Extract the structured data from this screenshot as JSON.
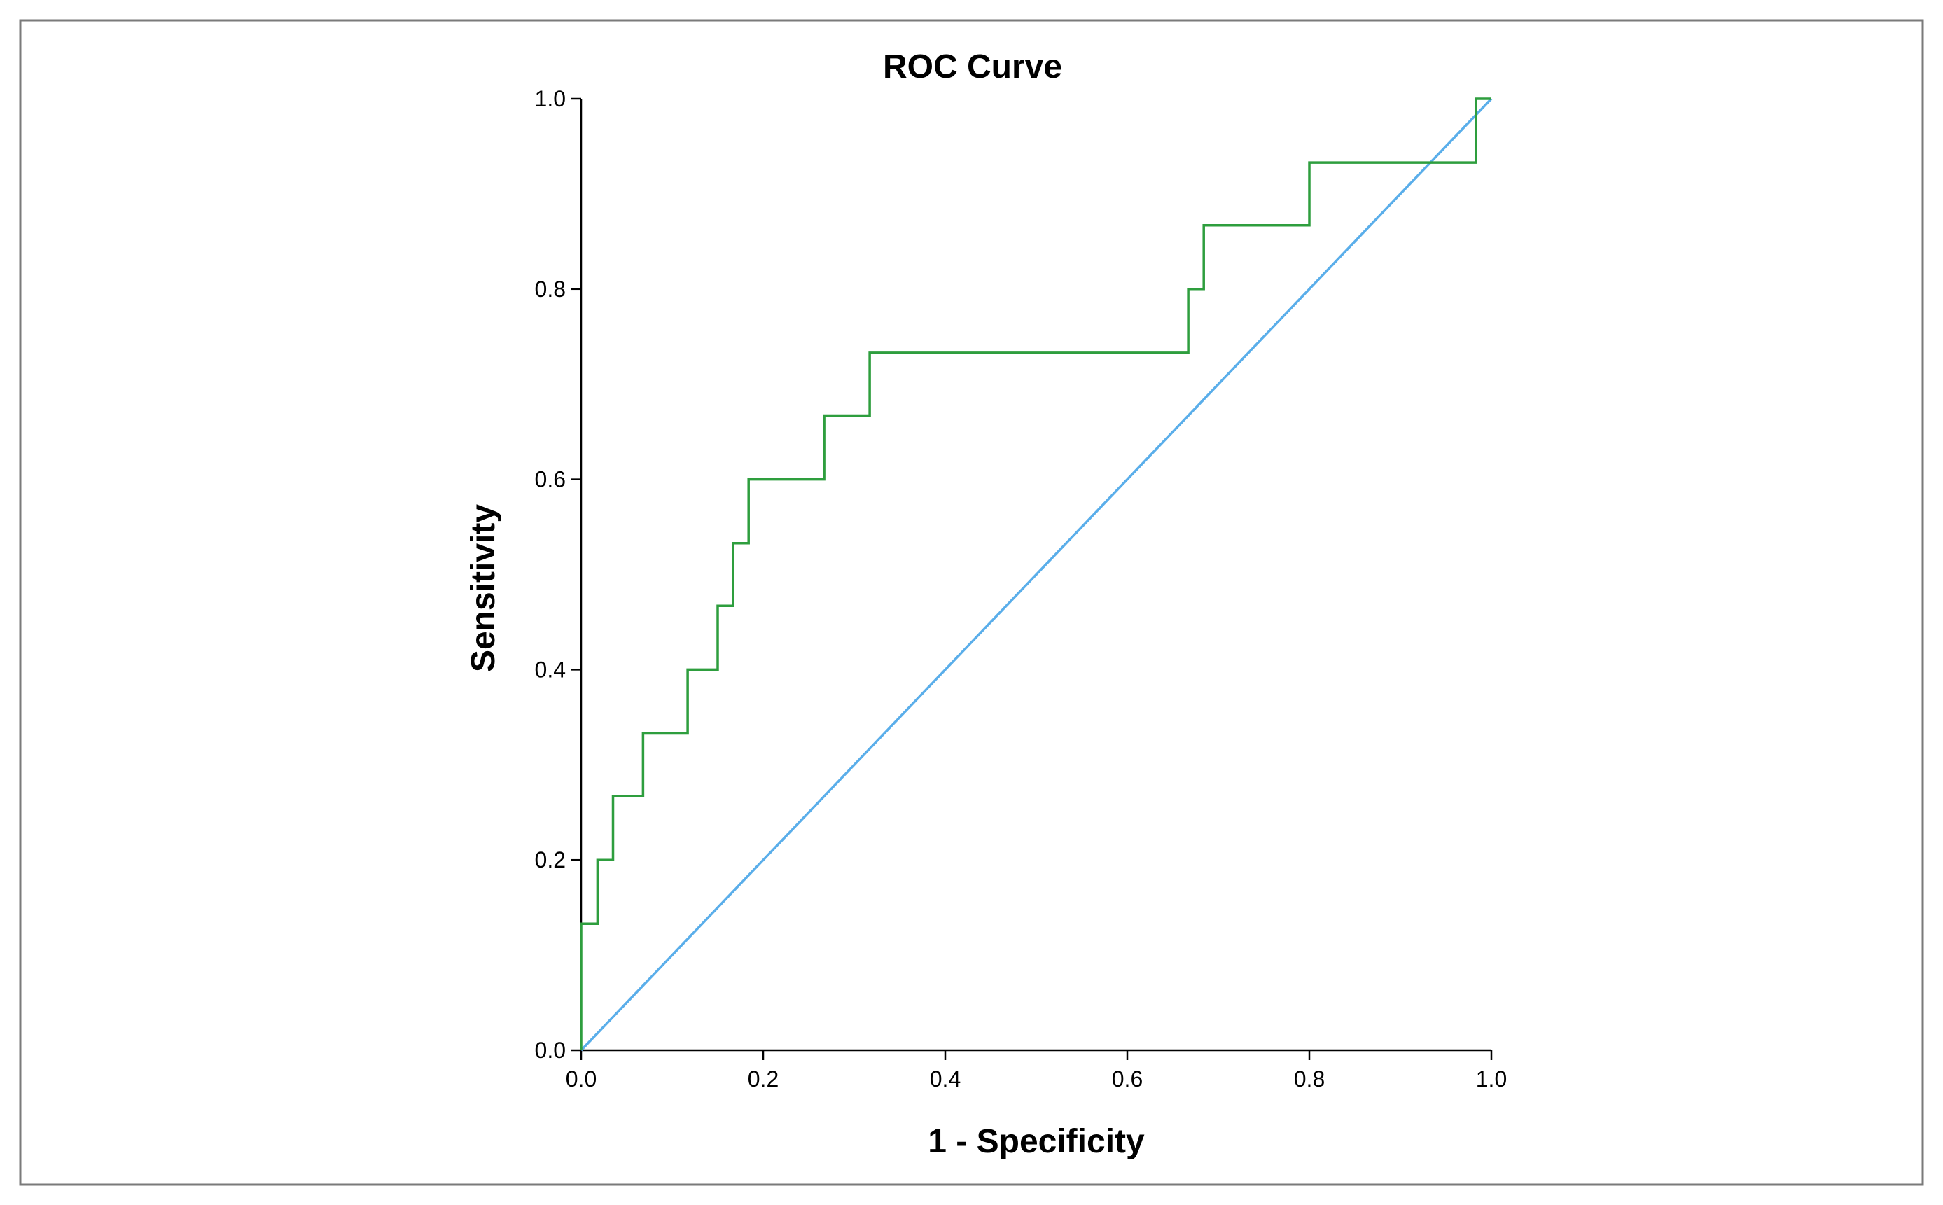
{
  "chart_data": {
    "type": "line",
    "title": "ROC Curve",
    "xlabel": "1 - Specificity",
    "ylabel": "Sensitivity",
    "xlim": [
      0,
      1
    ],
    "ylim": [
      0,
      1
    ],
    "xticks": [
      0,
      0.2,
      0.4,
      0.6,
      0.8,
      1
    ],
    "yticks": [
      0,
      0.2,
      0.4,
      0.6,
      0.8,
      1
    ],
    "xtick_labels": [
      "0.0",
      "0.2",
      "0.4",
      "0.6",
      "0.8",
      "1.0"
    ],
    "ytick_labels": [
      "0.0",
      "0.2",
      "0.4",
      "0.6",
      "0.8",
      "1.0"
    ],
    "grid": false,
    "legend": "none",
    "series": [
      {
        "name": "ROC",
        "color": "#2e9e3e",
        "step": true,
        "x": [
          0,
          0,
          0.018,
          0.018,
          0.035,
          0.035,
          0.068,
          0.068,
          0.117,
          0.117,
          0.15,
          0.15,
          0.167,
          0.167,
          0.184,
          0.184,
          0.267,
          0.267,
          0.317,
          0.317,
          0.667,
          0.667,
          0.684,
          0.684,
          0.8,
          0.8,
          0.983,
          0.983,
          1
        ],
        "y": [
          0,
          0.133,
          0.133,
          0.2,
          0.2,
          0.267,
          0.267,
          0.333,
          0.333,
          0.4,
          0.4,
          0.467,
          0.467,
          0.533,
          0.533,
          0.6,
          0.6,
          0.667,
          0.667,
          0.733,
          0.733,
          0.8,
          0.8,
          0.867,
          0.867,
          0.933,
          0.933,
          1,
          1
        ]
      },
      {
        "name": "Reference Line",
        "color": "#5aaeea",
        "step": false,
        "x": [
          0,
          1
        ],
        "y": [
          0,
          1
        ]
      }
    ]
  }
}
